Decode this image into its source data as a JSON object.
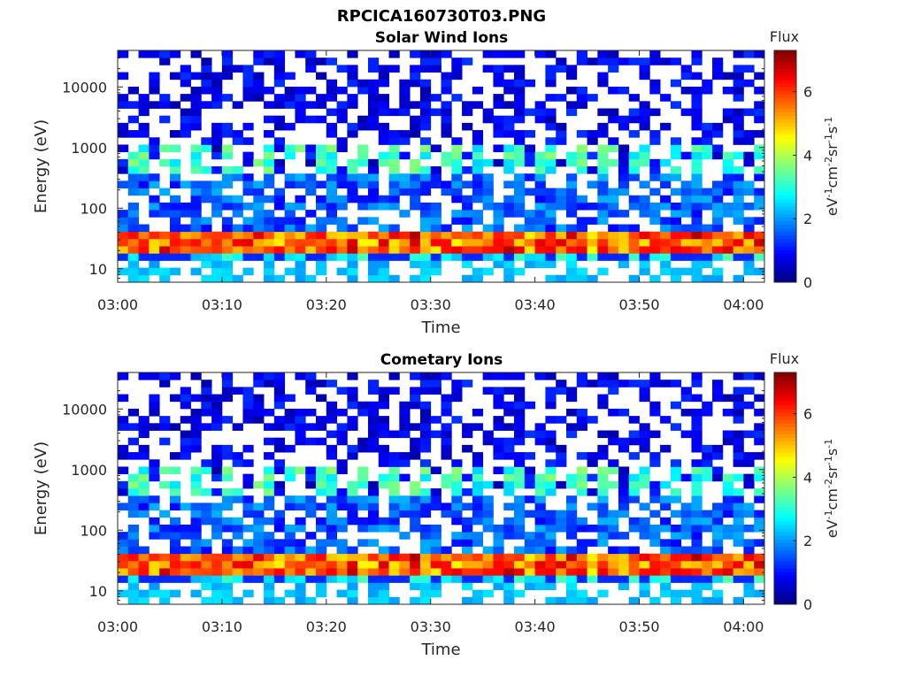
{
  "figure_title": "RPCICA160730T03.PNG",
  "chart_data": [
    {
      "type": "heatmap",
      "title": "Solar Wind Ions",
      "xlabel": "Time",
      "ylabel": "Energy (eV)",
      "y_scale": "log",
      "ylim": [
        6,
        40000
      ],
      "x_range_minutes": [
        0,
        62
      ],
      "x_ticks": [
        "03:00",
        "03:10",
        "03:20",
        "03:30",
        "03:40",
        "03:50",
        "04:00"
      ],
      "y_ticks": [
        "10",
        "100",
        "1000",
        "10000"
      ],
      "colorbar": {
        "label_top": "Flux",
        "units": "eV-1cm-2sr-1s-1",
        "ticks": [
          "0",
          "2",
          "4",
          "6"
        ],
        "range": [
          0,
          7.3
        ],
        "colormap": "jet"
      },
      "notes": "Strong band at ~20-40 eV (flux 4.5-6.8), periodic patches at ~500-1000 eV (flux 2.5-3.5), sparse background near 1 at higher energies"
    },
    {
      "type": "heatmap",
      "title": "Cometary Ions",
      "xlabel": "Time",
      "ylabel": "Energy (eV)",
      "y_scale": "log",
      "ylim": [
        6,
        40000
      ],
      "x_range_minutes": [
        0,
        62
      ],
      "x_ticks": [
        "03:00",
        "03:10",
        "03:20",
        "03:30",
        "03:40",
        "03:50",
        "04:00"
      ],
      "y_ticks": [
        "10",
        "100",
        "1000",
        "10000"
      ],
      "colorbar": {
        "label_top": "Flux",
        "units": "eV-1cm-2sr-1s-1",
        "ticks": [
          "0",
          "2",
          "4",
          "6"
        ],
        "range": [
          0,
          7.3
        ],
        "colormap": "jet"
      },
      "notes": "Same pattern as upper panel"
    }
  ]
}
